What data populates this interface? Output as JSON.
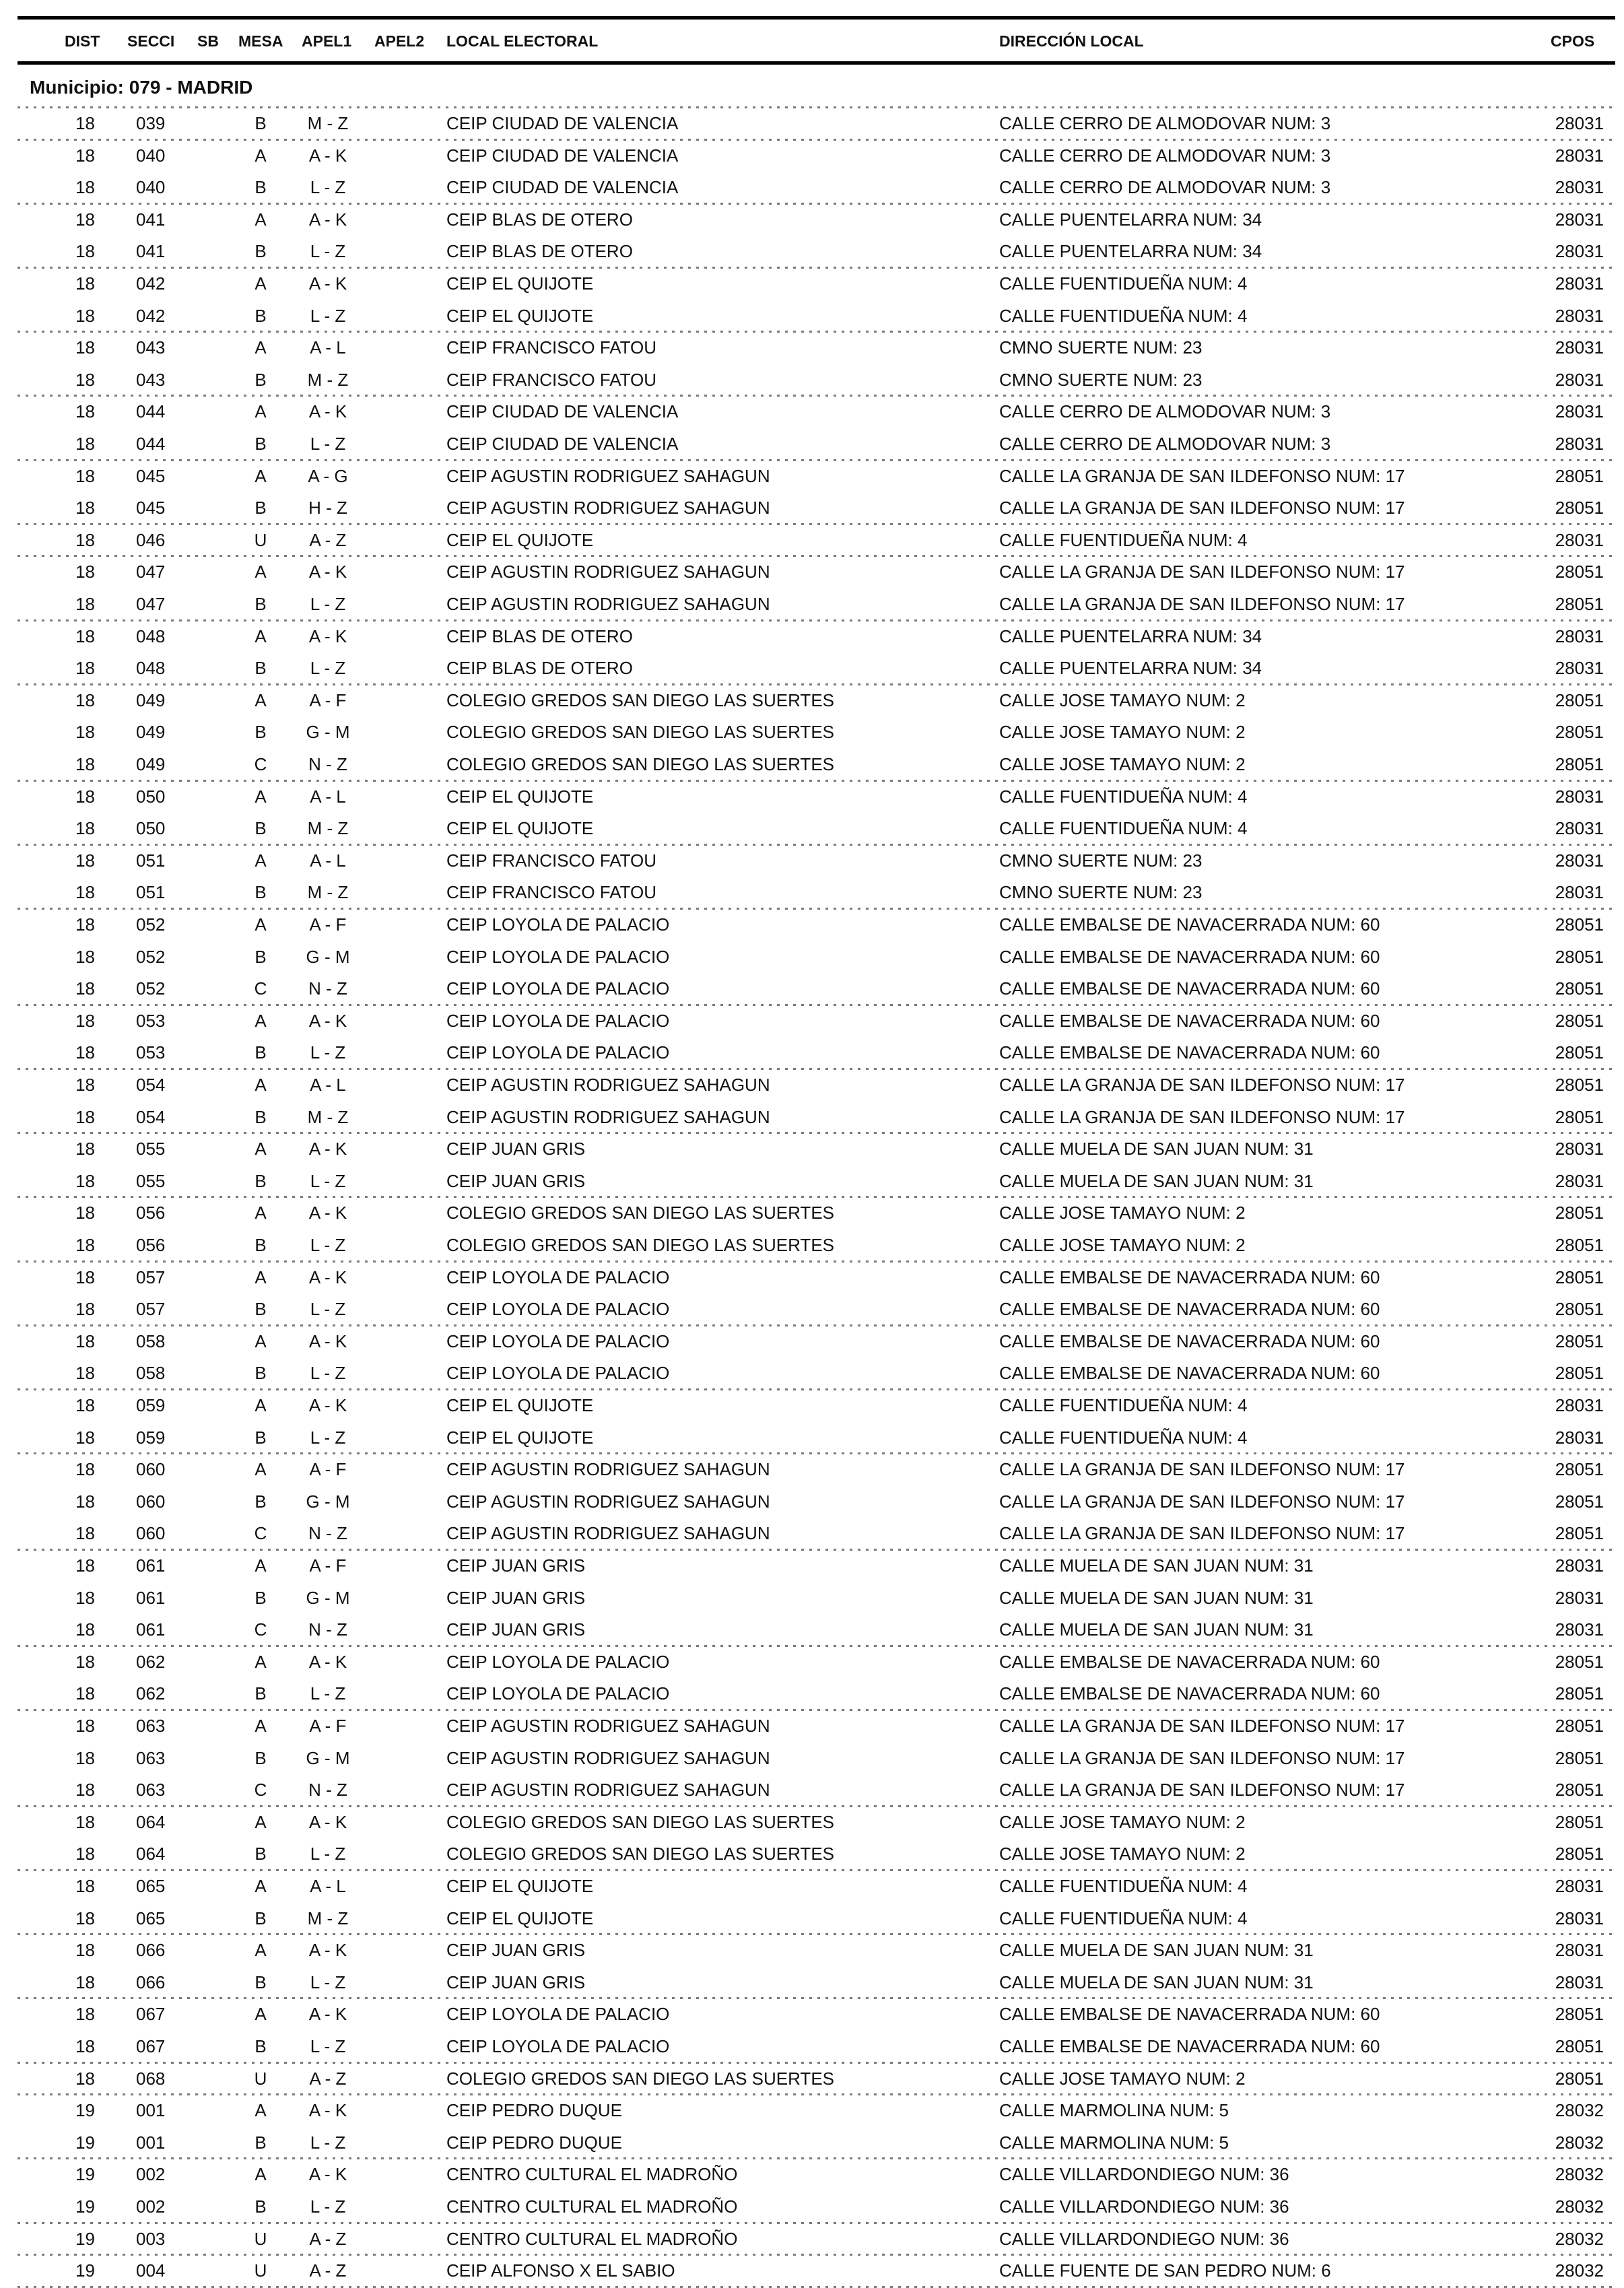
{
  "header": {
    "columns": [
      "DIST",
      "SECCI",
      "SB",
      "MESA",
      "APEL1",
      "APEL2",
      "LOCAL ELECTORAL",
      "DIRECCIÓN LOCAL",
      "CPOS"
    ]
  },
  "municipio": "Municipio:  079 - MADRID",
  "rows": [
    [
      "18",
      "039",
      "",
      "B",
      "M - Z",
      "",
      "CEIP CIUDAD DE VALENCIA",
      "CALLE CERRO DE ALMODOVAR NUM: 3",
      "28031"
    ],
    [
      "18",
      "040",
      "",
      "A",
      "A - K",
      "",
      "CEIP CIUDAD DE VALENCIA",
      "CALLE CERRO DE ALMODOVAR NUM: 3",
      "28031"
    ],
    [
      "18",
      "040",
      "",
      "B",
      "L - Z",
      "",
      "CEIP CIUDAD DE VALENCIA",
      "CALLE CERRO DE ALMODOVAR NUM: 3",
      "28031"
    ],
    [
      "18",
      "041",
      "",
      "A",
      "A - K",
      "",
      "CEIP BLAS DE OTERO",
      "CALLE PUENTELARRA NUM: 34",
      "28031"
    ],
    [
      "18",
      "041",
      "",
      "B",
      "L - Z",
      "",
      "CEIP BLAS DE OTERO",
      "CALLE PUENTELARRA NUM: 34",
      "28031"
    ],
    [
      "18",
      "042",
      "",
      "A",
      "A - K",
      "",
      "CEIP EL QUIJOTE",
      "CALLE FUENTIDUEÑA NUM: 4",
      "28031"
    ],
    [
      "18",
      "042",
      "",
      "B",
      "L - Z",
      "",
      "CEIP EL QUIJOTE",
      "CALLE FUENTIDUEÑA NUM: 4",
      "28031"
    ],
    [
      "18",
      "043",
      "",
      "A",
      "A - L",
      "",
      "CEIP FRANCISCO FATOU",
      "CMNO SUERTE NUM: 23",
      "28031"
    ],
    [
      "18",
      "043",
      "",
      "B",
      "M - Z",
      "",
      "CEIP FRANCISCO FATOU",
      "CMNO SUERTE NUM: 23",
      "28031"
    ],
    [
      "18",
      "044",
      "",
      "A",
      "A - K",
      "",
      "CEIP CIUDAD DE VALENCIA",
      "CALLE CERRO DE ALMODOVAR NUM: 3",
      "28031"
    ],
    [
      "18",
      "044",
      "",
      "B",
      "L - Z",
      "",
      "CEIP CIUDAD DE VALENCIA",
      "CALLE CERRO DE ALMODOVAR NUM: 3",
      "28031"
    ],
    [
      "18",
      "045",
      "",
      "A",
      "A - G",
      "",
      "CEIP AGUSTIN RODRIGUEZ SAHAGUN",
      "CALLE LA GRANJA DE SAN ILDEFONSO NUM: 17",
      "28051"
    ],
    [
      "18",
      "045",
      "",
      "B",
      "H - Z",
      "",
      "CEIP AGUSTIN RODRIGUEZ SAHAGUN",
      "CALLE LA GRANJA DE SAN ILDEFONSO NUM: 17",
      "28051"
    ],
    [
      "18",
      "046",
      "",
      "U",
      "A - Z",
      "",
      "CEIP EL QUIJOTE",
      "CALLE FUENTIDUEÑA NUM: 4",
      "28031"
    ],
    [
      "18",
      "047",
      "",
      "A",
      "A - K",
      "",
      "CEIP AGUSTIN RODRIGUEZ SAHAGUN",
      "CALLE LA GRANJA DE SAN ILDEFONSO NUM: 17",
      "28051"
    ],
    [
      "18",
      "047",
      "",
      "B",
      "L - Z",
      "",
      "CEIP AGUSTIN RODRIGUEZ SAHAGUN",
      "CALLE LA GRANJA DE SAN ILDEFONSO NUM: 17",
      "28051"
    ],
    [
      "18",
      "048",
      "",
      "A",
      "A - K",
      "",
      "CEIP BLAS DE OTERO",
      "CALLE PUENTELARRA NUM: 34",
      "28031"
    ],
    [
      "18",
      "048",
      "",
      "B",
      "L - Z",
      "",
      "CEIP BLAS DE OTERO",
      "CALLE PUENTELARRA NUM: 34",
      "28031"
    ],
    [
      "18",
      "049",
      "",
      "A",
      "A - F",
      "",
      "COLEGIO GREDOS SAN DIEGO LAS SUERTES",
      "CALLE JOSE TAMAYO NUM: 2",
      "28051"
    ],
    [
      "18",
      "049",
      "",
      "B",
      "G - M",
      "",
      "COLEGIO GREDOS SAN DIEGO LAS SUERTES",
      "CALLE JOSE TAMAYO NUM: 2",
      "28051"
    ],
    [
      "18",
      "049",
      "",
      "C",
      "N - Z",
      "",
      "COLEGIO GREDOS SAN DIEGO LAS SUERTES",
      "CALLE JOSE TAMAYO NUM: 2",
      "28051"
    ],
    [
      "18",
      "050",
      "",
      "A",
      "A - L",
      "",
      "CEIP EL QUIJOTE",
      "CALLE FUENTIDUEÑA NUM: 4",
      "28031"
    ],
    [
      "18",
      "050",
      "",
      "B",
      "M - Z",
      "",
      "CEIP EL QUIJOTE",
      "CALLE FUENTIDUEÑA NUM: 4",
      "28031"
    ],
    [
      "18",
      "051",
      "",
      "A",
      "A - L",
      "",
      "CEIP FRANCISCO FATOU",
      "CMNO SUERTE NUM: 23",
      "28031"
    ],
    [
      "18",
      "051",
      "",
      "B",
      "M - Z",
      "",
      "CEIP FRANCISCO FATOU",
      "CMNO SUERTE NUM: 23",
      "28031"
    ],
    [
      "18",
      "052",
      "",
      "A",
      "A - F",
      "",
      "CEIP LOYOLA DE PALACIO",
      "CALLE EMBALSE DE NAVACERRADA NUM: 60",
      "28051"
    ],
    [
      "18",
      "052",
      "",
      "B",
      "G - M",
      "",
      "CEIP LOYOLA DE PALACIO",
      "CALLE EMBALSE DE NAVACERRADA NUM: 60",
      "28051"
    ],
    [
      "18",
      "052",
      "",
      "C",
      "N - Z",
      "",
      "CEIP LOYOLA DE PALACIO",
      "CALLE EMBALSE DE NAVACERRADA NUM: 60",
      "28051"
    ],
    [
      "18",
      "053",
      "",
      "A",
      "A - K",
      "",
      "CEIP LOYOLA DE PALACIO",
      "CALLE EMBALSE DE NAVACERRADA NUM: 60",
      "28051"
    ],
    [
      "18",
      "053",
      "",
      "B",
      "L - Z",
      "",
      "CEIP LOYOLA DE PALACIO",
      "CALLE EMBALSE DE NAVACERRADA NUM: 60",
      "28051"
    ],
    [
      "18",
      "054",
      "",
      "A",
      "A - L",
      "",
      "CEIP AGUSTIN RODRIGUEZ SAHAGUN",
      "CALLE LA GRANJA DE SAN ILDEFONSO NUM: 17",
      "28051"
    ],
    [
      "18",
      "054",
      "",
      "B",
      "M - Z",
      "",
      "CEIP AGUSTIN RODRIGUEZ SAHAGUN",
      "CALLE LA GRANJA DE SAN ILDEFONSO NUM: 17",
      "28051"
    ],
    [
      "18",
      "055",
      "",
      "A",
      "A - K",
      "",
      "CEIP JUAN GRIS",
      "CALLE MUELA DE SAN JUAN NUM: 31",
      "28031"
    ],
    [
      "18",
      "055",
      "",
      "B",
      "L - Z",
      "",
      "CEIP JUAN GRIS",
      "CALLE MUELA DE SAN JUAN NUM: 31",
      "28031"
    ],
    [
      "18",
      "056",
      "",
      "A",
      "A - K",
      "",
      "COLEGIO GREDOS SAN DIEGO LAS SUERTES",
      "CALLE JOSE TAMAYO NUM: 2",
      "28051"
    ],
    [
      "18",
      "056",
      "",
      "B",
      "L - Z",
      "",
      "COLEGIO GREDOS SAN DIEGO LAS SUERTES",
      "CALLE JOSE TAMAYO NUM: 2",
      "28051"
    ],
    [
      "18",
      "057",
      "",
      "A",
      "A - K",
      "",
      "CEIP LOYOLA DE PALACIO",
      "CALLE EMBALSE DE NAVACERRADA NUM: 60",
      "28051"
    ],
    [
      "18",
      "057",
      "",
      "B",
      "L - Z",
      "",
      "CEIP LOYOLA DE PALACIO",
      "CALLE EMBALSE DE NAVACERRADA NUM: 60",
      "28051"
    ],
    [
      "18",
      "058",
      "",
      "A",
      "A - K",
      "",
      "CEIP LOYOLA DE PALACIO",
      "CALLE EMBALSE DE NAVACERRADA NUM: 60",
      "28051"
    ],
    [
      "18",
      "058",
      "",
      "B",
      "L - Z",
      "",
      "CEIP LOYOLA DE PALACIO",
      "CALLE EMBALSE DE NAVACERRADA NUM: 60",
      "28051"
    ],
    [
      "18",
      "059",
      "",
      "A",
      "A - K",
      "",
      "CEIP EL QUIJOTE",
      "CALLE FUENTIDUEÑA NUM: 4",
      "28031"
    ],
    [
      "18",
      "059",
      "",
      "B",
      "L - Z",
      "",
      "CEIP EL QUIJOTE",
      "CALLE FUENTIDUEÑA NUM: 4",
      "28031"
    ],
    [
      "18",
      "060",
      "",
      "A",
      "A - F",
      "",
      "CEIP AGUSTIN RODRIGUEZ SAHAGUN",
      "CALLE LA GRANJA DE SAN ILDEFONSO NUM: 17",
      "28051"
    ],
    [
      "18",
      "060",
      "",
      "B",
      "G - M",
      "",
      "CEIP AGUSTIN RODRIGUEZ SAHAGUN",
      "CALLE LA GRANJA DE SAN ILDEFONSO NUM: 17",
      "28051"
    ],
    [
      "18",
      "060",
      "",
      "C",
      "N - Z",
      "",
      "CEIP AGUSTIN RODRIGUEZ SAHAGUN",
      "CALLE LA GRANJA DE SAN ILDEFONSO NUM: 17",
      "28051"
    ],
    [
      "18",
      "061",
      "",
      "A",
      "A - F",
      "",
      "CEIP JUAN GRIS",
      "CALLE MUELA DE SAN JUAN NUM: 31",
      "28031"
    ],
    [
      "18",
      "061",
      "",
      "B",
      "G - M",
      "",
      "CEIP JUAN GRIS",
      "CALLE MUELA DE SAN JUAN NUM: 31",
      "28031"
    ],
    [
      "18",
      "061",
      "",
      "C",
      "N - Z",
      "",
      "CEIP JUAN GRIS",
      "CALLE MUELA DE SAN JUAN NUM: 31",
      "28031"
    ],
    [
      "18",
      "062",
      "",
      "A",
      "A - K",
      "",
      "CEIP LOYOLA DE PALACIO",
      "CALLE EMBALSE DE NAVACERRADA NUM: 60",
      "28051"
    ],
    [
      "18",
      "062",
      "",
      "B",
      "L - Z",
      "",
      "CEIP LOYOLA DE PALACIO",
      "CALLE EMBALSE DE NAVACERRADA NUM: 60",
      "28051"
    ],
    [
      "18",
      "063",
      "",
      "A",
      "A - F",
      "",
      "CEIP AGUSTIN RODRIGUEZ SAHAGUN",
      "CALLE LA GRANJA DE SAN ILDEFONSO NUM: 17",
      "28051"
    ],
    [
      "18",
      "063",
      "",
      "B",
      "G - M",
      "",
      "CEIP AGUSTIN RODRIGUEZ SAHAGUN",
      "CALLE LA GRANJA DE SAN ILDEFONSO NUM: 17",
      "28051"
    ],
    [
      "18",
      "063",
      "",
      "C",
      "N - Z",
      "",
      "CEIP AGUSTIN RODRIGUEZ SAHAGUN",
      "CALLE LA GRANJA DE SAN ILDEFONSO NUM: 17",
      "28051"
    ],
    [
      "18",
      "064",
      "",
      "A",
      "A - K",
      "",
      "COLEGIO GREDOS SAN DIEGO LAS SUERTES",
      "CALLE JOSE TAMAYO NUM: 2",
      "28051"
    ],
    [
      "18",
      "064",
      "",
      "B",
      "L - Z",
      "",
      "COLEGIO GREDOS SAN DIEGO LAS SUERTES",
      "CALLE JOSE TAMAYO NUM: 2",
      "28051"
    ],
    [
      "18",
      "065",
      "",
      "A",
      "A - L",
      "",
      "CEIP EL QUIJOTE",
      "CALLE FUENTIDUEÑA NUM: 4",
      "28031"
    ],
    [
      "18",
      "065",
      "",
      "B",
      "M - Z",
      "",
      "CEIP EL QUIJOTE",
      "CALLE FUENTIDUEÑA NUM: 4",
      "28031"
    ],
    [
      "18",
      "066",
      "",
      "A",
      "A - K",
      "",
      "CEIP JUAN GRIS",
      "CALLE MUELA DE SAN JUAN NUM: 31",
      "28031"
    ],
    [
      "18",
      "066",
      "",
      "B",
      "L - Z",
      "",
      "CEIP JUAN GRIS",
      "CALLE MUELA DE SAN JUAN NUM: 31",
      "28031"
    ],
    [
      "18",
      "067",
      "",
      "A",
      "A - K",
      "",
      "CEIP LOYOLA DE PALACIO",
      "CALLE EMBALSE DE NAVACERRADA NUM: 60",
      "28051"
    ],
    [
      "18",
      "067",
      "",
      "B",
      "L - Z",
      "",
      "CEIP LOYOLA DE PALACIO",
      "CALLE EMBALSE DE NAVACERRADA NUM: 60",
      "28051"
    ],
    [
      "18",
      "068",
      "",
      "U",
      "A - Z",
      "",
      "COLEGIO GREDOS SAN DIEGO LAS SUERTES",
      "CALLE JOSE TAMAYO NUM: 2",
      "28051"
    ],
    [
      "19",
      "001",
      "",
      "A",
      "A - K",
      "",
      "CEIP PEDRO DUQUE",
      "CALLE MARMOLINA NUM: 5",
      "28032"
    ],
    [
      "19",
      "001",
      "",
      "B",
      "L - Z",
      "",
      "CEIP PEDRO DUQUE",
      "CALLE MARMOLINA NUM: 5",
      "28032"
    ],
    [
      "19",
      "002",
      "",
      "A",
      "A - K",
      "",
      "CENTRO CULTURAL EL MADROÑO",
      "CALLE VILLARDONDIEGO NUM: 36",
      "28032"
    ],
    [
      "19",
      "002",
      "",
      "B",
      "L - Z",
      "",
      "CENTRO CULTURAL EL MADROÑO",
      "CALLE VILLARDONDIEGO NUM: 36",
      "28032"
    ],
    [
      "19",
      "003",
      "",
      "U",
      "A - Z",
      "",
      "CENTRO CULTURAL EL MADROÑO",
      "CALLE VILLARDONDIEGO NUM: 36",
      "28032"
    ],
    [
      "19",
      "004",
      "",
      "U",
      "A - Z",
      "",
      "CEIP ALFONSO X EL SABIO",
      "CALLE FUENTE DE SAN PEDRO NUM: 6",
      "28032"
    ]
  ]
}
